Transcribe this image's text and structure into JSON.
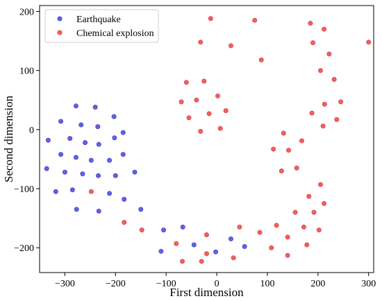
{
  "chart_data": {
    "type": "scatter",
    "title": "",
    "xlabel": "First dimension",
    "ylabel": "Second dimension",
    "xlim": [
      -350,
      310
    ],
    "ylim": [
      -242,
      210
    ],
    "xticks": [
      -300,
      -200,
      -100,
      0,
      100,
      200,
      300
    ],
    "yticks": [
      -200,
      -100,
      0,
      100,
      200
    ],
    "grid": false,
    "legend_position": "top-left",
    "series": [
      {
        "name": "Earthquake",
        "color": "#3b3bd6",
        "points": [
          [
            -278,
            40
          ],
          [
            -240,
            38
          ],
          [
            -308,
            14
          ],
          [
            -268,
            8
          ],
          [
            -235,
            5
          ],
          [
            -203,
            22
          ],
          [
            -185,
            -5
          ],
          [
            -333,
            -18
          ],
          [
            -290,
            -15
          ],
          [
            -260,
            -22
          ],
          [
            -233,
            -25
          ],
          [
            -202,
            -14
          ],
          [
            -308,
            -42
          ],
          [
            -278,
            -47
          ],
          [
            -248,
            -52
          ],
          [
            -212,
            -52
          ],
          [
            -185,
            -42
          ],
          [
            -336,
            -66
          ],
          [
            -300,
            -72
          ],
          [
            -265,
            -75
          ],
          [
            -234,
            -78
          ],
          [
            -200,
            -78
          ],
          [
            -162,
            -72
          ],
          [
            -285,
            -102
          ],
          [
            -318,
            -105
          ],
          [
            -212,
            -108
          ],
          [
            -183,
            -118
          ],
          [
            -277,
            -135
          ],
          [
            -233,
            -138
          ],
          [
            -150,
            -135
          ],
          [
            -105,
            -170
          ],
          [
            -67,
            -165
          ],
          [
            -110,
            -206
          ],
          [
            -45,
            -195
          ],
          [
            -2,
            -207
          ],
          [
            28,
            -185
          ],
          [
            55,
            -198
          ]
        ]
      },
      {
        "name": "Chemical explosion",
        "color": "#e83a3a",
        "points": [
          [
            -12,
            188
          ],
          [
            -32,
            148
          ],
          [
            28,
            142
          ],
          [
            75,
            185
          ],
          [
            88,
            118
          ],
          [
            185,
            180
          ],
          [
            212,
            170
          ],
          [
            190,
            147
          ],
          [
            222,
            128
          ],
          [
            300,
            148
          ],
          [
            205,
            100
          ],
          [
            232,
            85
          ],
          [
            -60,
            80
          ],
          [
            -25,
            82
          ],
          [
            -70,
            47
          ],
          [
            -40,
            50
          ],
          [
            2,
            57
          ],
          [
            -55,
            20
          ],
          [
            -15,
            27
          ],
          [
            18,
            32
          ],
          [
            -32,
            -3
          ],
          [
            7,
            2
          ],
          [
            188,
            28
          ],
          [
            213,
            43
          ],
          [
            245,
            47
          ],
          [
            237,
            17
          ],
          [
            210,
            6
          ],
          [
            132,
            -6
          ],
          [
            168,
            -19
          ],
          [
            112,
            -33
          ],
          [
            142,
            -35
          ],
          [
            128,
            -70
          ],
          [
            158,
            -65
          ],
          [
            182,
            -113
          ],
          [
            205,
            -93
          ],
          [
            -248,
            -105
          ],
          [
            212,
            -125
          ],
          [
            192,
            -140
          ],
          [
            155,
            -140
          ],
          [
            118,
            -162
          ],
          [
            172,
            -165
          ],
          [
            202,
            -170
          ],
          [
            -183,
            -157
          ],
          [
            -148,
            -170
          ],
          [
            45,
            -165
          ],
          [
            85,
            -174
          ],
          [
            -20,
            -178
          ],
          [
            140,
            -182
          ],
          [
            -80,
            -193
          ],
          [
            108,
            -200
          ],
          [
            178,
            -195
          ],
          [
            140,
            -213
          ],
          [
            -20,
            -210
          ],
          [
            -68,
            -223
          ],
          [
            -30,
            -223
          ],
          [
            33,
            -217
          ]
        ]
      }
    ]
  }
}
